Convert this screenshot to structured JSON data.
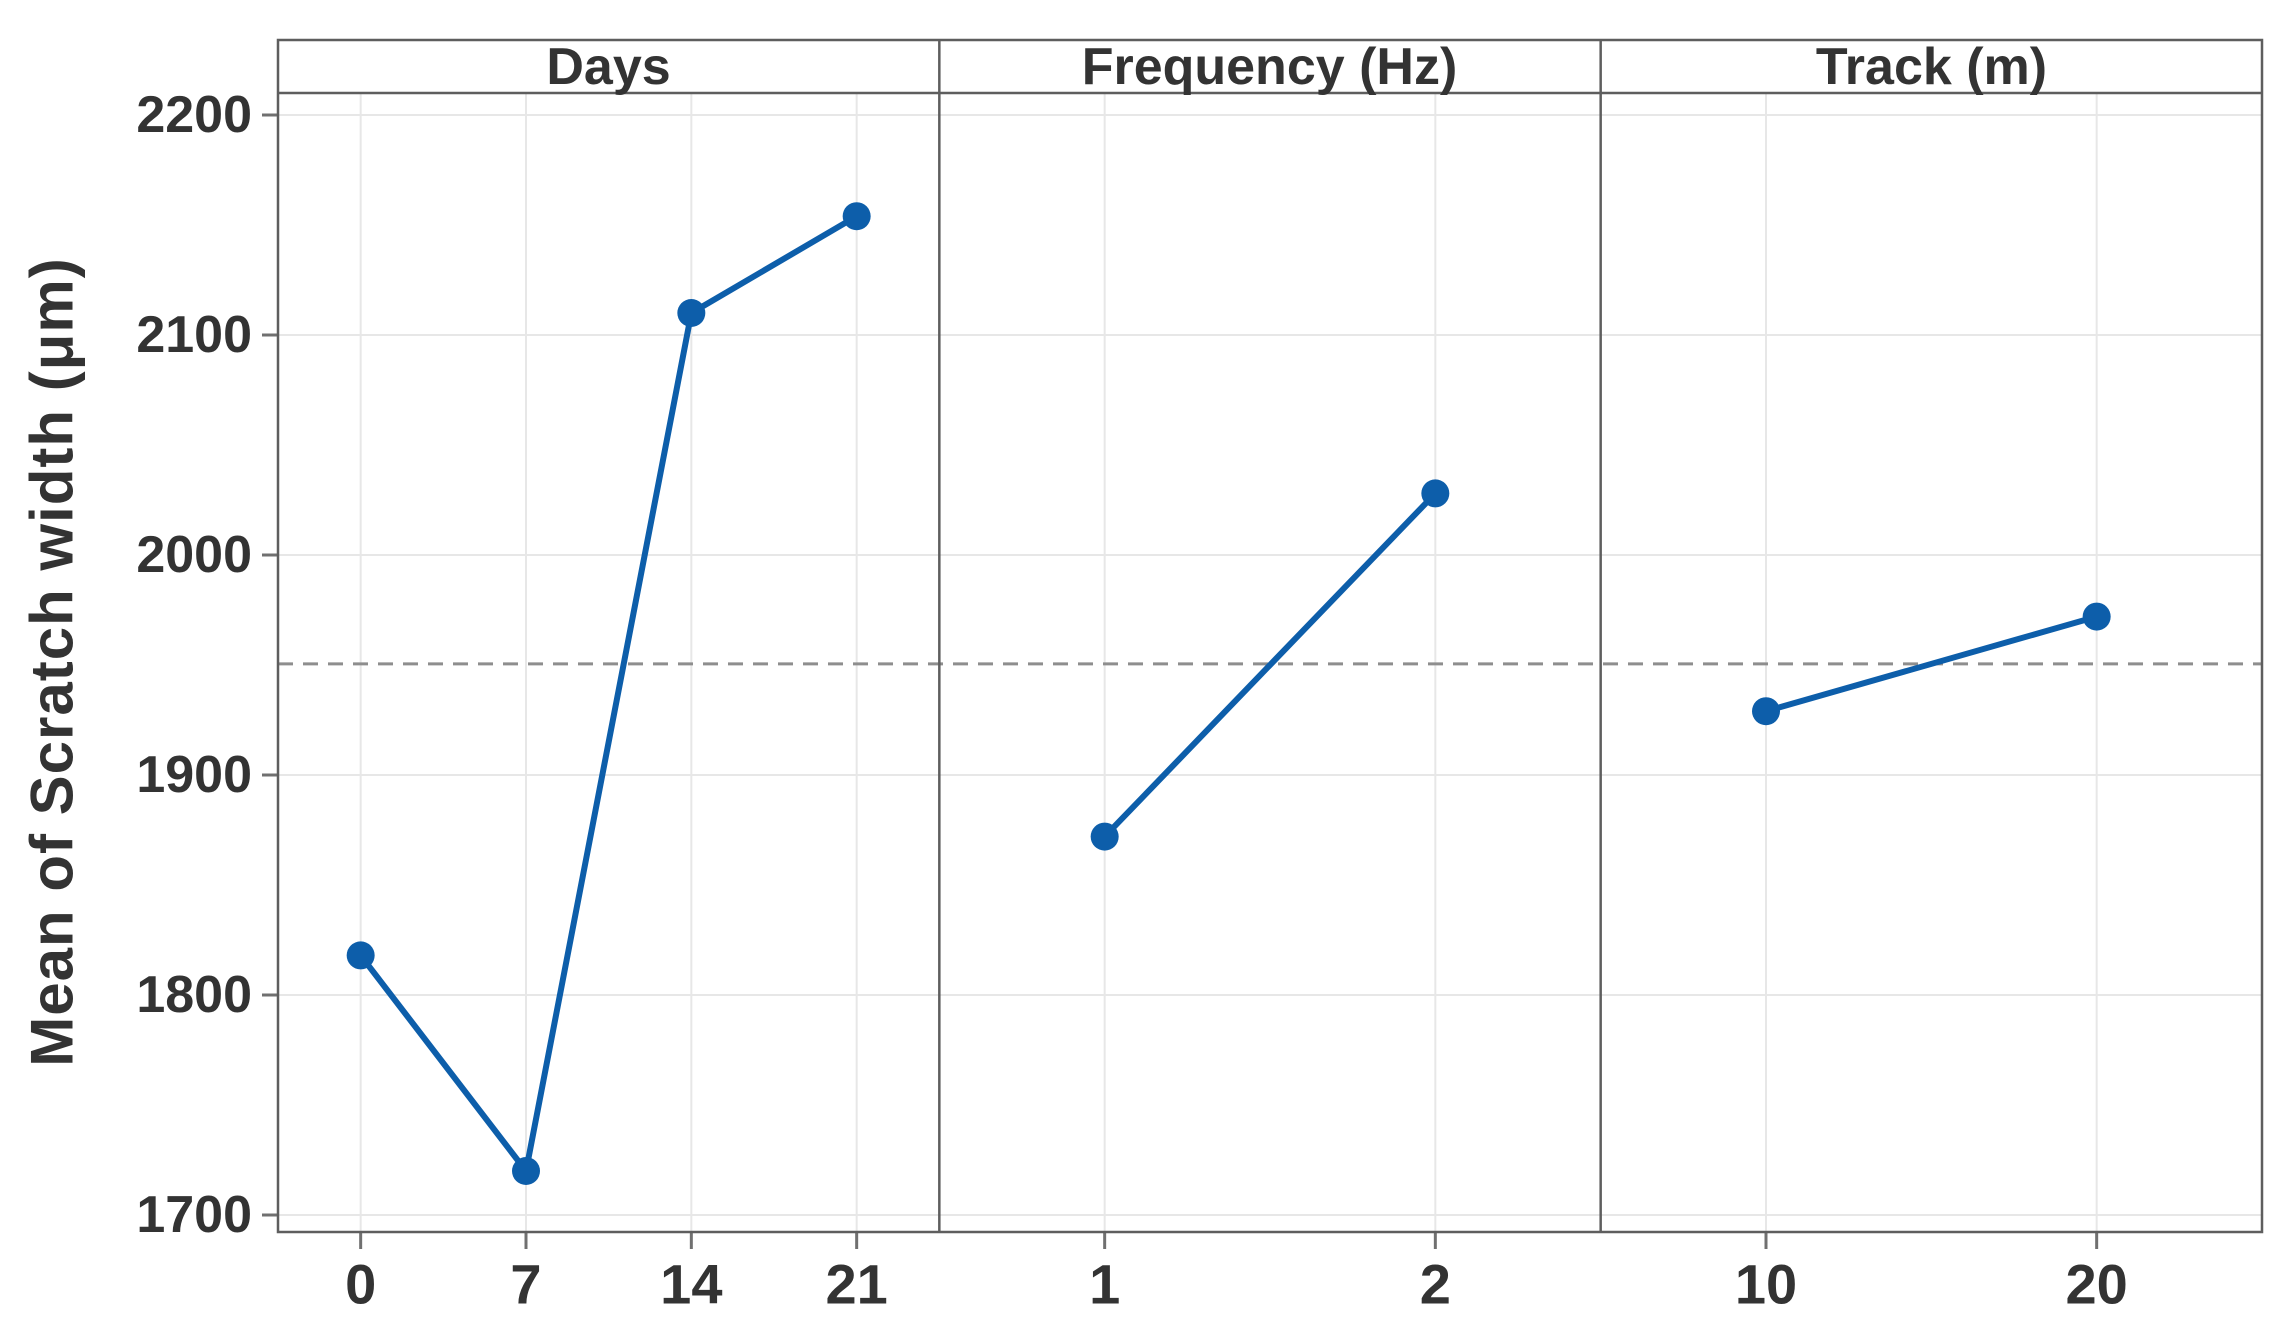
{
  "chart_data": {
    "type": "line",
    "chart_kind": "main-effects-plot",
    "title": "",
    "xlabel": "",
    "ylabel": "Mean of Scratch width (μm)",
    "yticks": [
      1700,
      1800,
      1900,
      2000,
      2100,
      2200
    ],
    "ylim": [
      1692,
      2210
    ],
    "grid": true,
    "legend": false,
    "marker": "circle",
    "reference_line": {
      "value": 1950.5,
      "style": "dashed"
    },
    "panels": [
      {
        "title": "Days",
        "categories": [
          "0",
          "7",
          "14",
          "21"
        ],
        "values": [
          1818,
          1720,
          2110,
          2154
        ]
      },
      {
        "title": "Frequency (Hz)",
        "categories": [
          "1",
          "2"
        ],
        "values": [
          1872,
          2028
        ]
      },
      {
        "title": "Track (m)",
        "categories": [
          "10",
          "20"
        ],
        "values": [
          1929,
          1972
        ]
      }
    ]
  },
  "colors": {
    "series": "#0D5EAA",
    "reference_line": "#8E8E8E",
    "gridline": "#E7E7E7",
    "panel_border": "#5E5E5E",
    "tick_mark": "#707070",
    "text": "#333333",
    "background": "#FFFFFF",
    "header_fill": "#FFFFFF"
  }
}
